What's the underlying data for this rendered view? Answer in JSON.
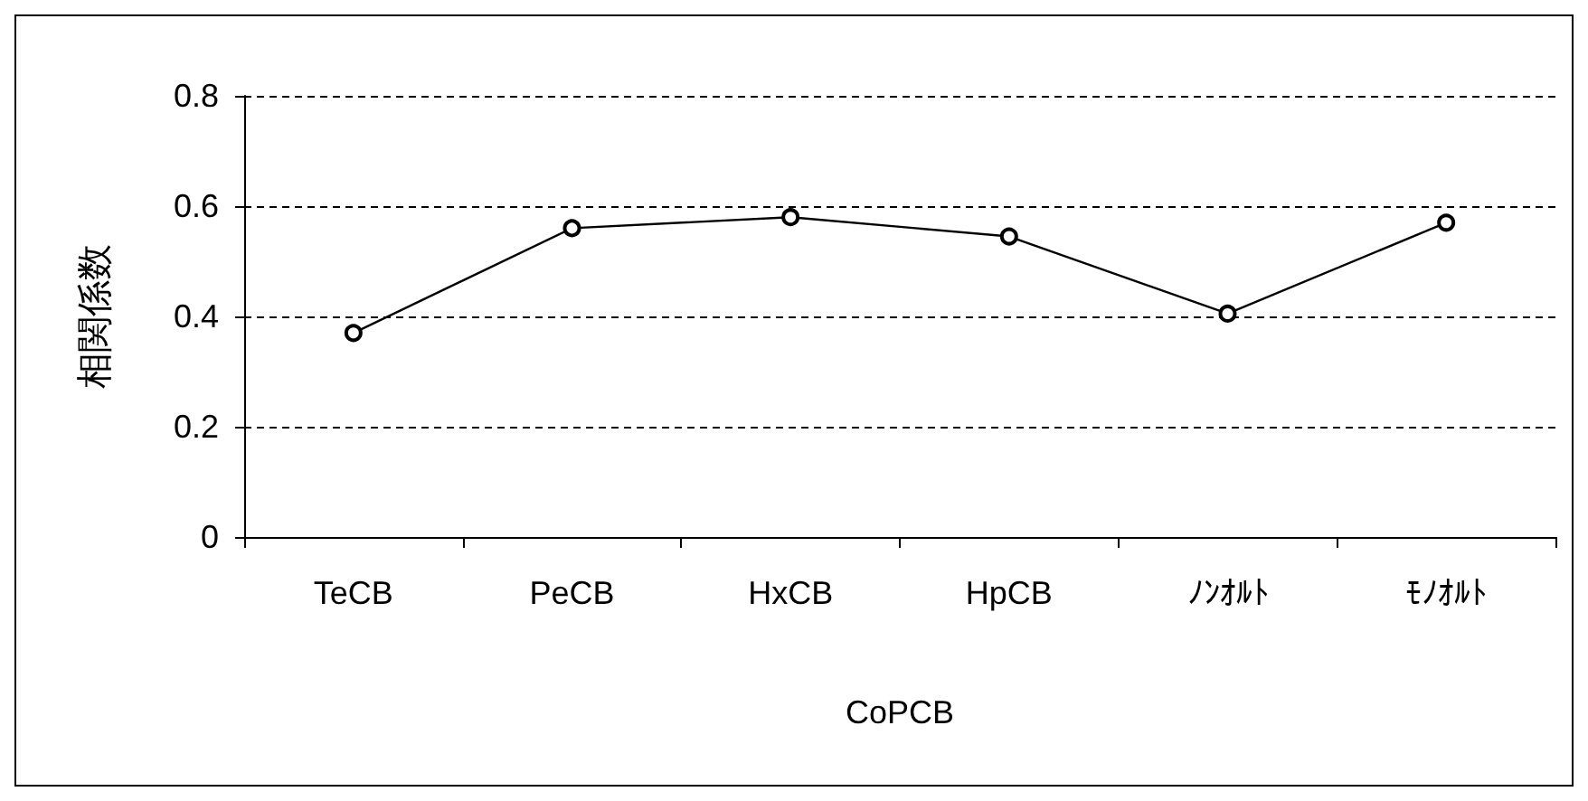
{
  "chart_data": {
    "type": "line",
    "xlabel": "CoPCB",
    "ylabel": "相関係数",
    "categories": [
      "TeCB",
      "PeCB",
      "HxCB",
      "HpCB",
      "ﾉﾝｵﾙﾄ",
      "ﾓﾉｵﾙﾄ"
    ],
    "series": [
      {
        "color": "#000000",
        "values": [
          0.37,
          0.56,
          0.58,
          0.545,
          0.405,
          0.57
        ]
      }
    ],
    "ylim": [
      0,
      0.8
    ],
    "yticks": [
      0,
      0.2,
      0.4,
      0.6,
      0.8
    ],
    "grid": "y",
    "marker": "circle",
    "line_style": "solid"
  }
}
